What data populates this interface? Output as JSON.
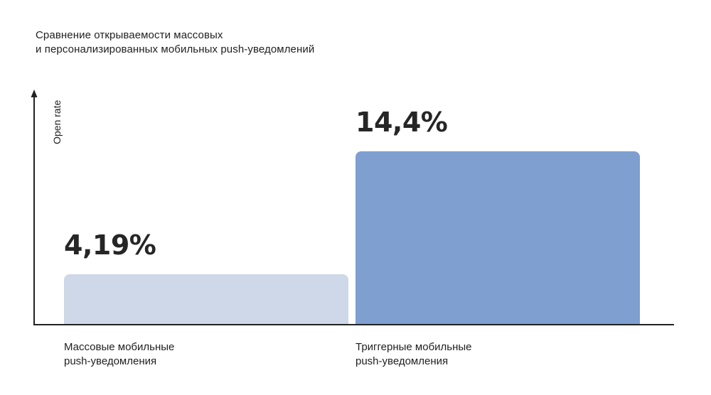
{
  "chart_data": {
    "type": "bar",
    "title_lines": [
      "Сравнение открываемости массовых",
      "и персонализированных мобильных push-уведомлений"
    ],
    "ylabel": "Open rate",
    "xlabel": "",
    "ylim": [
      0,
      19.3
    ],
    "grid": false,
    "categories": [
      {
        "lines": [
          "Массовые мобильные",
          "push-уведомления"
        ]
      },
      {
        "lines": [
          "Триггерные мобильные",
          "push-уведомления"
        ]
      }
    ],
    "values": [
      4.19,
      14.4
    ],
    "value_labels": [
      "4,19%",
      "14,4%"
    ],
    "colors": [
      "#cfd8e8",
      "#7e9fd0"
    ]
  }
}
